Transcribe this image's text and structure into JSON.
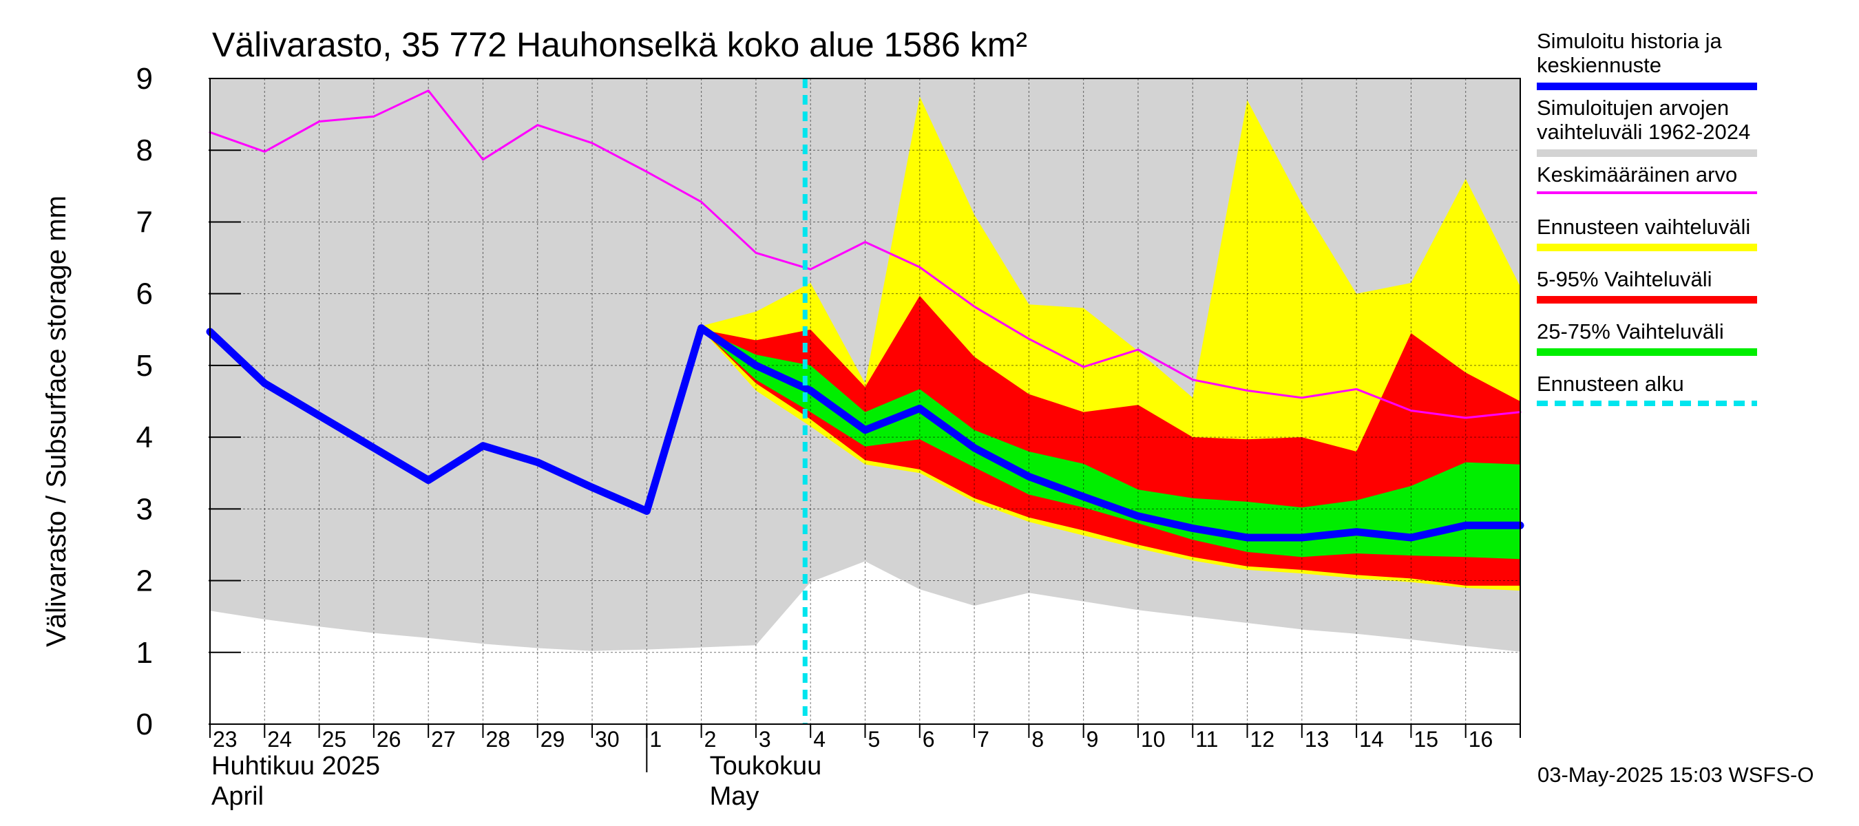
{
  "chart_data": {
    "type": "area",
    "title": "Välivarasto, 35 772 Hauhonselkä koko alue 1586 km²",
    "ylabel": "Välivarasto / Subsurface storage  mm",
    "ylim": [
      0,
      9
    ],
    "yticks": [
      "0",
      "1",
      "2",
      "3",
      "4",
      "5",
      "6",
      "7",
      "8",
      "9"
    ],
    "grid": true,
    "legend_position": "right",
    "x_ticks": [
      "23",
      "24",
      "25",
      "26",
      "27",
      "28",
      "29",
      "30",
      "1",
      "2",
      "3",
      "4",
      "5",
      "6",
      "7",
      "8",
      "9",
      "10",
      "11",
      "12",
      "13",
      "14",
      "15",
      "16"
    ],
    "month_labels": [
      {
        "fi": "Huhtikuu  2025",
        "en": "April"
      },
      {
        "fi": "Toukokuu",
        "en": "May"
      }
    ],
    "forecast_start_x": 10.9,
    "series": [
      {
        "name": "Simuloitujen arvojen vaihteluväli 1962-2024",
        "color": "#d3d3d3",
        "x": [
          0,
          1,
          2,
          3,
          4,
          5,
          6,
          7,
          8,
          9,
          10,
          11,
          12,
          13,
          14,
          15,
          16,
          17,
          18,
          19,
          20,
          21,
          22,
          23,
          24
        ],
        "upper": [
          9,
          9,
          9,
          9,
          9,
          9,
          9,
          9,
          9,
          9,
          9,
          9,
          9,
          9,
          9,
          9,
          9,
          9,
          9,
          9,
          9,
          9,
          9,
          9,
          9
        ],
        "lower": [
          1.58,
          1.46,
          1.36,
          1.27,
          1.2,
          1.12,
          1.06,
          1.02,
          1.04,
          1.07,
          1.1,
          1.98,
          2.27,
          1.88,
          1.65,
          1.83,
          1.71,
          1.59,
          1.5,
          1.41,
          1.32,
          1.26,
          1.18,
          1.09,
          1.01
        ]
      },
      {
        "name": "Ennusteen vaihteluväli",
        "color": "#ffff00",
        "x": [
          9,
          10,
          11,
          12,
          13,
          14,
          15,
          16,
          17,
          18,
          19,
          20,
          21,
          22,
          23,
          24
        ],
        "upper": [
          5.55,
          5.75,
          6.15,
          4.75,
          8.75,
          7.1,
          5.85,
          5.8,
          5.2,
          4.55,
          8.7,
          7.25,
          6.0,
          6.15,
          7.6,
          6.1
        ],
        "lower": [
          5.5,
          4.65,
          4.15,
          3.62,
          3.5,
          3.1,
          2.82,
          2.63,
          2.45,
          2.28,
          2.15,
          2.1,
          2.03,
          1.98,
          1.9,
          1.86
        ]
      },
      {
        "name": "5-95% Vaihteluväli",
        "color": "#ff0000",
        "x": [
          9,
          10,
          11,
          12,
          13,
          14,
          15,
          16,
          17,
          18,
          19,
          20,
          21,
          22,
          23,
          24
        ],
        "upper": [
          5.5,
          5.35,
          5.5,
          4.7,
          5.97,
          5.12,
          4.6,
          4.35,
          4.45,
          4.0,
          3.97,
          4.0,
          3.8,
          5.45,
          4.9,
          4.5
        ],
        "lower": [
          5.5,
          4.75,
          4.25,
          3.68,
          3.55,
          3.15,
          2.88,
          2.7,
          2.5,
          2.33,
          2.2,
          2.15,
          2.08,
          2.03,
          1.93,
          1.93
        ]
      },
      {
        "name": "25-75% Vaihteluväli",
        "color": "#00ee00",
        "x": [
          9,
          10,
          11,
          12,
          13,
          14,
          15,
          16,
          17,
          18,
          19,
          20,
          21,
          22,
          23,
          24
        ],
        "upper": [
          5.5,
          5.15,
          5.0,
          4.35,
          4.67,
          4.1,
          3.8,
          3.63,
          3.27,
          3.15,
          3.1,
          3.02,
          3.12,
          3.32,
          3.65,
          3.62
        ],
        "lower": [
          5.5,
          4.8,
          4.35,
          3.87,
          3.97,
          3.58,
          3.2,
          3.02,
          2.8,
          2.57,
          2.4,
          2.33,
          2.38,
          2.35,
          2.33,
          2.3
        ]
      },
      {
        "name": "Keskimääräinen arvo",
        "color": "#ff00ff",
        "x": [
          0,
          1,
          2,
          3,
          4,
          5,
          6,
          7,
          8,
          9,
          10,
          11,
          12,
          13,
          14,
          15,
          16,
          17,
          18,
          19,
          20,
          21,
          22,
          23,
          24
        ],
        "values": [
          8.25,
          7.98,
          8.4,
          8.47,
          8.83,
          7.87,
          8.35,
          8.1,
          7.7,
          7.28,
          6.57,
          6.34,
          6.72,
          6.37,
          5.82,
          5.37,
          4.98,
          5.22,
          4.8,
          4.65,
          4.55,
          4.67,
          4.37,
          4.27,
          4.35
        ]
      },
      {
        "name": "Simuloitu historia ja keskiennuste",
        "color": "#0000ff",
        "x": [
          0,
          1,
          2,
          3,
          4,
          5,
          6,
          7,
          8,
          9,
          10,
          11,
          12,
          13,
          14,
          15,
          16,
          17,
          18,
          19,
          20,
          21,
          22,
          23,
          24
        ],
        "values": [
          5.47,
          4.75,
          4.3,
          3.85,
          3.4,
          3.88,
          3.65,
          3.3,
          2.97,
          5.52,
          5.0,
          4.65,
          4.1,
          4.4,
          3.85,
          3.45,
          3.17,
          2.9,
          2.73,
          2.6,
          2.6,
          2.68,
          2.6,
          2.77,
          2.77
        ]
      }
    ]
  },
  "legend": [
    {
      "label": "Simuloitu historia ja\nkeskiennuste",
      "color": "#0000ff",
      "style": "solid"
    },
    {
      "label": "Simuloitujen arvojen\nvaihteluväli 1962-2024",
      "color": "#d3d3d3",
      "style": "solid"
    },
    {
      "label": "Keskimääräinen arvo",
      "color": "#ff00ff",
      "style": "thin"
    },
    {
      "label": "Ennusteen vaihteluväli",
      "color": "#ffff00",
      "style": "solid"
    },
    {
      "label": "5-95% Vaihteluväli",
      "color": "#ff0000",
      "style": "solid"
    },
    {
      "label": "25-75% Vaihteluväli",
      "color": "#00ee00",
      "style": "solid"
    },
    {
      "label": "Ennusteen alku",
      "color": "#00e5ee",
      "style": "dashed"
    }
  ],
  "timestamp": "03-May-2025 15:03 WSFS-O"
}
